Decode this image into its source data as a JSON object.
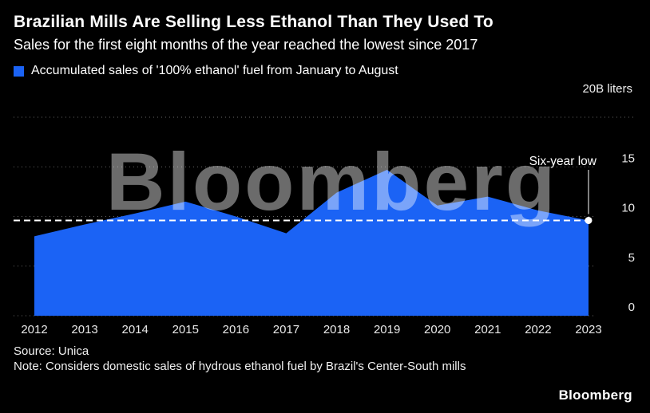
{
  "header": {
    "title": "Brazilian Mills Are Selling Less Ethanol Than They Used To",
    "subtitle": "Sales for the first eight months of the year reached the lowest since 2017"
  },
  "legend": {
    "label": "Accumulated sales of '100% ethanol' fuel from January to August"
  },
  "axis": {
    "top_label": "20B liters"
  },
  "annotation": {
    "label": "Six-year low"
  },
  "watermark": "Bloomberg",
  "footer": {
    "source": "Source: Unica",
    "note": "Note: Considers domestic sales of hydrous ethanol fuel by Brazil's Center-South mills",
    "logo": "Bloomberg"
  },
  "colors": {
    "background": "#000000",
    "accent": "#1b63f5",
    "gridline": "#666666",
    "tick_text": "#e8e8e8",
    "reference": "#ffffff"
  },
  "chart_data": {
    "type": "area",
    "title": "Brazilian Mills Are Selling Less Ethanol Than They Used To",
    "xlabel": "",
    "ylabel": "B liters",
    "unit": "B liters",
    "categories": [
      "2012",
      "2013",
      "2014",
      "2015",
      "2016",
      "2017",
      "2018",
      "2019",
      "2020",
      "2021",
      "2022",
      "2023"
    ],
    "values": [
      8.0,
      9.2,
      10.3,
      11.5,
      10.0,
      8.3,
      12.4,
      14.7,
      11.1,
      12.0,
      10.6,
      9.6
    ],
    "ylim": [
      0,
      20
    ],
    "yticks": [
      0,
      5,
      10,
      15,
      20
    ],
    "grid": "dotted-horizontal",
    "legend_entries": [
      "Accumulated sales of '100% ethanol' fuel from January to August"
    ],
    "reference_line": {
      "value": 9.6,
      "label": "Six-year low",
      "style": "dashed"
    }
  }
}
